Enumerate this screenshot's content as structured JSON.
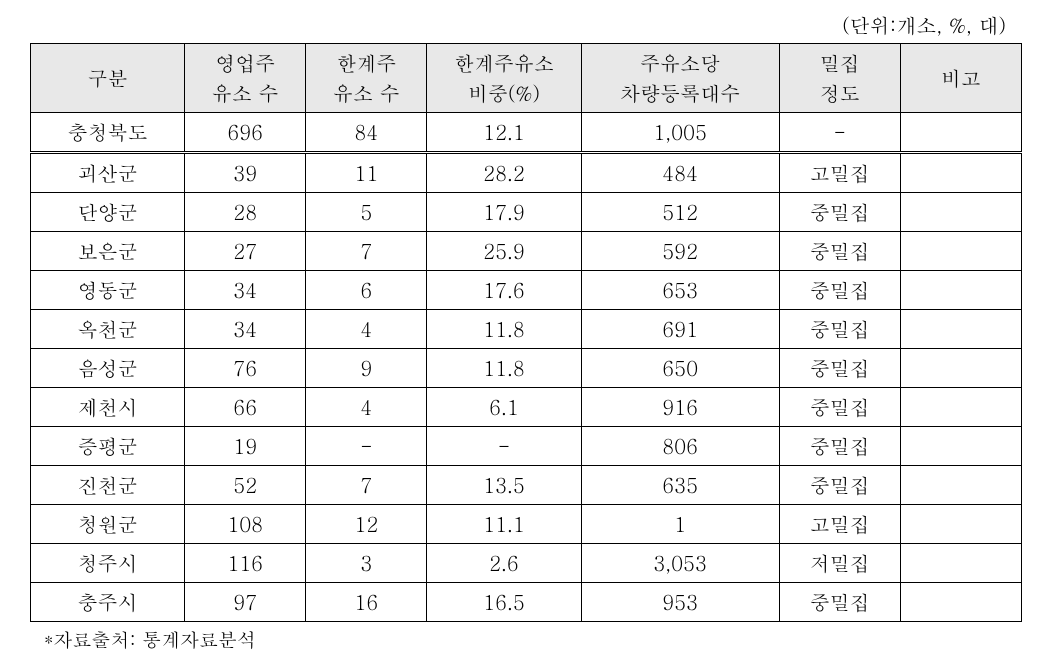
{
  "unit_label": "(단위:개소, %, 대)",
  "headers": {
    "region": "구분",
    "biz_line1": "영업주",
    "biz_line2": "유소 수",
    "marginal_line1": "한계주",
    "marginal_line2": "유소 수",
    "ratio_line1": "한계주유소",
    "ratio_line2": "비중(%)",
    "per_line1": "주유소당",
    "per_line2": "차량등록대수",
    "density_line1": "밀집",
    "density_line2": "정도",
    "note": "비고"
  },
  "rows": [
    {
      "region": "충청북도",
      "biz": "696",
      "marginal": "84",
      "ratio": "12.1",
      "per": "1,005",
      "density": "-",
      "note": ""
    },
    {
      "region": "괴산군",
      "biz": "39",
      "marginal": "11",
      "ratio": "28.2",
      "per": "484",
      "density": "고밀집",
      "note": ""
    },
    {
      "region": "단양군",
      "biz": "28",
      "marginal": "5",
      "ratio": "17.9",
      "per": "512",
      "density": "중밀집",
      "note": ""
    },
    {
      "region": "보은군",
      "biz": "27",
      "marginal": "7",
      "ratio": "25.9",
      "per": "592",
      "density": "중밀집",
      "note": ""
    },
    {
      "region": "영동군",
      "biz": "34",
      "marginal": "6",
      "ratio": "17.6",
      "per": "653",
      "density": "중밀집",
      "note": ""
    },
    {
      "region": "옥천군",
      "biz": "34",
      "marginal": "4",
      "ratio": "11.8",
      "per": "691",
      "density": "중밀집",
      "note": ""
    },
    {
      "region": "음성군",
      "biz": "76",
      "marginal": "9",
      "ratio": "11.8",
      "per": "650",
      "density": "중밀집",
      "note": ""
    },
    {
      "region": "제천시",
      "biz": "66",
      "marginal": "4",
      "ratio": "6.1",
      "per": "916",
      "density": "중밀집",
      "note": ""
    },
    {
      "region": "증평군",
      "biz": "19",
      "marginal": "-",
      "ratio": "-",
      "per": "806",
      "density": "중밀집",
      "note": ""
    },
    {
      "region": "진천군",
      "biz": "52",
      "marginal": "7",
      "ratio": "13.5",
      "per": "635",
      "density": "중밀집",
      "note": ""
    },
    {
      "region": "청원군",
      "biz": "108",
      "marginal": "12",
      "ratio": "11.1",
      "per": "1",
      "density": "고밀집",
      "note": ""
    },
    {
      "region": "청주시",
      "biz": "116",
      "marginal": "3",
      "ratio": "2.6",
      "per": "3,053",
      "density": "저밀집",
      "note": ""
    },
    {
      "region": "충주시",
      "biz": "97",
      "marginal": "16",
      "ratio": "16.5",
      "per": "953",
      "density": "중밀집",
      "note": ""
    }
  ],
  "footnote": "*자료출처: 통계자료분석",
  "styling": {
    "header_bg": "#e8e8e8",
    "border_color": "#000000",
    "font_size_pt": 20,
    "first_row_double_border": true
  }
}
